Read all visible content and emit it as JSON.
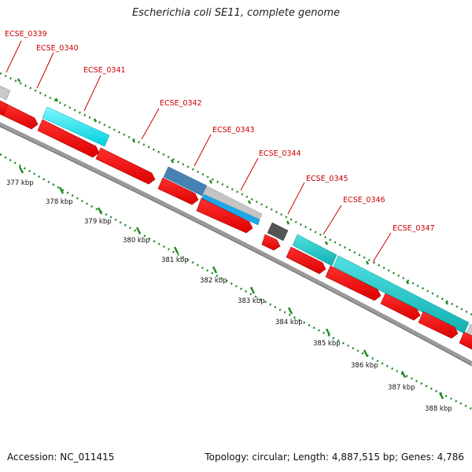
{
  "title": "Escherichia coli SE11, complete genome",
  "footer": {
    "accession": "Accession: NC_011415",
    "topology": "Topology: circular; Length: 4,887,515 bp; Genes: 4,786"
  },
  "scale": {
    "ticks": [
      "377 kbp",
      "378 kbp",
      "379 kbp",
      "380 kbp",
      "381 kbp",
      "382 kbp",
      "383 kbp",
      "384 kbp",
      "385 kbp",
      "386 kbp",
      "387 kbp",
      "388 kbp"
    ]
  },
  "genes": [
    "ECSE_0339",
    "ECSE_0340",
    "ECSE_0341",
    "ECSE_0342",
    "ECSE_0343",
    "ECSE_0344",
    "ECSE_0345",
    "ECSE_0346",
    "ECSE_0347"
  ],
  "colors": {
    "cds_forward": "#ff0000",
    "backbone": "#a9a9a9",
    "dot_track": "#228b22",
    "label": "#cc0000",
    "cog_cyan": "#00e5ee",
    "cog_teal": "#1cc4c4",
    "cog_steelblue": "#4682b4",
    "cog_lightgray": "#c0c0c0",
    "cog_darkgray": "#555555",
    "cog_deepskyblue": "#10a8e8"
  }
}
